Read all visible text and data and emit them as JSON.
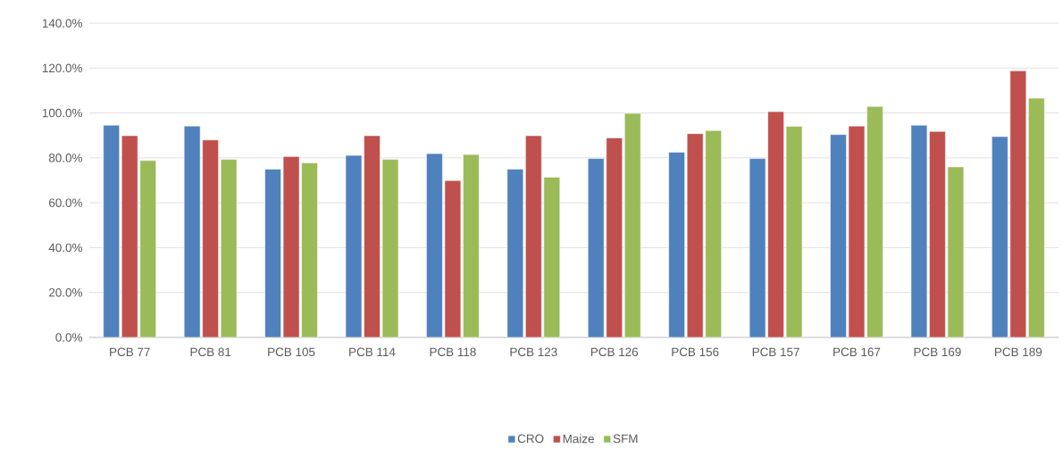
{
  "chart_data": {
    "type": "bar",
    "categories": [
      "PCB 77",
      "PCB 81",
      "PCB 105",
      "PCB 114",
      "PCB 118",
      "PCB 123",
      "PCB 126",
      "PCB 156",
      "PCB 157",
      "PCB 167",
      "PCB 169",
      "PCB 189"
    ],
    "series": [
      {
        "name": "CRO",
        "color": "#4f81bd",
        "values": [
          94.6,
          94.2,
          75.0,
          81.1,
          81.9,
          75.0,
          79.7,
          82.5,
          79.7,
          90.4,
          94.6,
          89.5
        ]
      },
      {
        "name": "Maize",
        "color": "#c0504d",
        "values": [
          89.9,
          88.0,
          80.6,
          89.9,
          69.9,
          89.9,
          88.9,
          90.8,
          100.6,
          94.2,
          91.8,
          118.8
        ]
      },
      {
        "name": "SFM",
        "color": "#9bbb59",
        "values": [
          78.8,
          79.3,
          77.8,
          79.3,
          81.5,
          71.4,
          99.8,
          92.2,
          94.1,
          102.9,
          76.0,
          106.6
        ]
      }
    ],
    "ylim": [
      0,
      140
    ],
    "yticks": [
      {
        "value": 0,
        "label": "0.0%"
      },
      {
        "value": 20,
        "label": "20.0%"
      },
      {
        "value": 40,
        "label": "40.0%"
      },
      {
        "value": 60,
        "label": "60.0%"
      },
      {
        "value": 80,
        "label": "80.0%"
      },
      {
        "value": 100,
        "label": "100.0%"
      },
      {
        "value": 120,
        "label": "120.0%"
      },
      {
        "value": 140,
        "label": "140.0%"
      }
    ],
    "grid": "y",
    "legend": "bottom"
  }
}
